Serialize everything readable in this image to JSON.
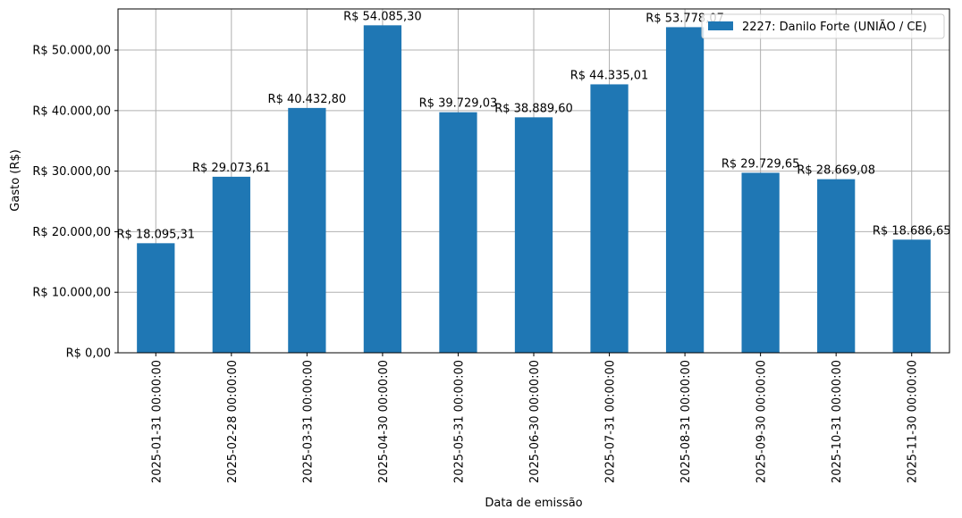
{
  "chart_data": {
    "type": "bar",
    "title": "",
    "xlabel": "Data de emissão",
    "ylabel": "Gasto (R$)",
    "ylim": [
      0,
      56790
    ],
    "grid": true,
    "legend_position": "upper right",
    "categories": [
      "2025-01-31 00:00:00",
      "2025-02-28 00:00:00",
      "2025-03-31 00:00:00",
      "2025-04-30 00:00:00",
      "2025-05-31 00:00:00",
      "2025-06-30 00:00:00",
      "2025-07-31 00:00:00",
      "2025-08-31 00:00:00",
      "2025-09-30 00:00:00",
      "2025-10-31 00:00:00",
      "2025-11-30 00:00:00"
    ],
    "series": [
      {
        "name": "2227: Danilo Forte (UNIÃO / CE)",
        "color": "#1f77b4",
        "values": [
          18095.31,
          29073.61,
          40432.8,
          54085.3,
          39729.03,
          38889.6,
          44335.01,
          53778.07,
          29729.65,
          28669.08,
          18686.65
        ],
        "labels": [
          "R$ 18.095,31",
          "R$ 29.073,61",
          "R$ 40.432,80",
          "R$ 54.085,30",
          "R$ 39.729,03",
          "R$ 38.889,60",
          "R$ 44.335,01",
          "R$ 53.778,07",
          "R$ 29.729,65",
          "R$ 28.669,08",
          "R$ 18.686,65"
        ]
      }
    ],
    "yticks": [
      0,
      10000,
      20000,
      30000,
      40000,
      50000
    ],
    "ytick_labels": [
      "R$ 0,00",
      "R$ 10.000,00",
      "R$ 20.000,00",
      "R$ 30.000,00",
      "R$ 40.000,00",
      "R$ 50.000,00"
    ]
  },
  "legend": {
    "label": "2227: Danilo Forte (UNIÃO / CE)"
  },
  "colors": {
    "bar": "#1f77b4",
    "grid": "#b0b0b0",
    "axis": "#000000"
  }
}
